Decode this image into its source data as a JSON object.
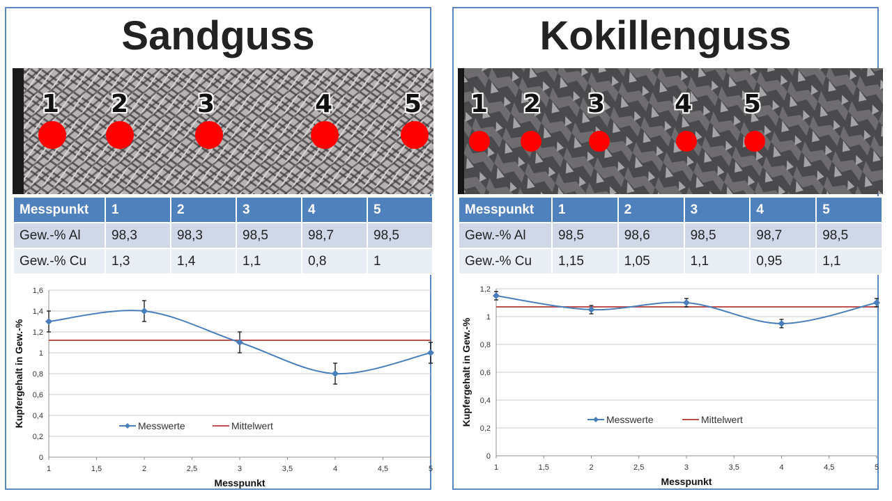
{
  "panels": [
    {
      "title": "Sandguss",
      "points": [
        "1",
        "2",
        "3",
        "4",
        "5"
      ],
      "table": {
        "headers": [
          "Messpunkt",
          "1",
          "2",
          "3",
          "4",
          "5"
        ],
        "rows": [
          [
            "Gew.-% Al",
            "98,3",
            "98,3",
            "98,5",
            "98,7",
            "98,5"
          ],
          [
            "Gew.-% Cu",
            "1,3",
            "1,4",
            "1,1",
            "0,8",
            "1"
          ]
        ]
      }
    },
    {
      "title": "Kokillenguss",
      "points": [
        "1",
        "2",
        "3",
        "4",
        "5"
      ],
      "table": {
        "headers": [
          "Messpunkt",
          "1",
          "2",
          "3",
          "4",
          "5"
        ],
        "rows": [
          [
            "Gew.-% Al",
            "98,5",
            "98,6",
            "98,5",
            "98,7",
            "98,5"
          ],
          [
            "Gew.-% Cu",
            "1,15",
            "1,05",
            "1,1",
            "0,95",
            "1,1"
          ]
        ]
      }
    }
  ],
  "colors": {
    "series": "#4a7ebb",
    "mean": "#c0504d",
    "header": "#4f81bd",
    "border": "#5b87c2",
    "dot": "#ff0000"
  },
  "chart_data": [
    {
      "type": "line",
      "xlabel": "Messpunkt",
      "ylabel": "Kupfergehalt in Gew.-%",
      "xlim": [
        1,
        5
      ],
      "ylim": [
        0,
        1.6
      ],
      "xticks": [
        "1",
        "1,5",
        "2",
        "2,5",
        "3",
        "3,5",
        "4",
        "4,5",
        "5"
      ],
      "yticks": [
        "0",
        "0,2",
        "0,4",
        "0,6",
        "0,8",
        "1",
        "1,2",
        "1,4",
        "1,6"
      ],
      "grid": true,
      "legend": "bottom-center",
      "series": [
        {
          "name": "Messwerte",
          "x": [
            1,
            2,
            3,
            4,
            5
          ],
          "values": [
            1.3,
            1.4,
            1.1,
            0.8,
            1.0
          ],
          "error": 0.1
        },
        {
          "name": "Mittelwert",
          "x": [
            1,
            5
          ],
          "values": [
            1.12,
            1.12
          ]
        }
      ]
    },
    {
      "type": "line",
      "xlabel": "Messpunkt",
      "ylabel": "Kupfergehalt in Gew.-%",
      "xlim": [
        1,
        5
      ],
      "ylim": [
        0,
        1.2
      ],
      "xticks": [
        "1",
        "1,5",
        "2",
        "2,5",
        "3",
        "3,5",
        "4",
        "4,5",
        "5"
      ],
      "yticks": [
        "0",
        "0,2",
        "0,4",
        "0,6",
        "0,8",
        "1",
        "1,2"
      ],
      "grid": true,
      "legend": "bottom-center",
      "series": [
        {
          "name": "Messwerte",
          "x": [
            1,
            2,
            3,
            4,
            5
          ],
          "values": [
            1.15,
            1.05,
            1.1,
            0.95,
            1.1
          ],
          "error": 0.03
        },
        {
          "name": "Mittelwert",
          "x": [
            1,
            5
          ],
          "values": [
            1.07,
            1.07
          ]
        }
      ]
    }
  ]
}
